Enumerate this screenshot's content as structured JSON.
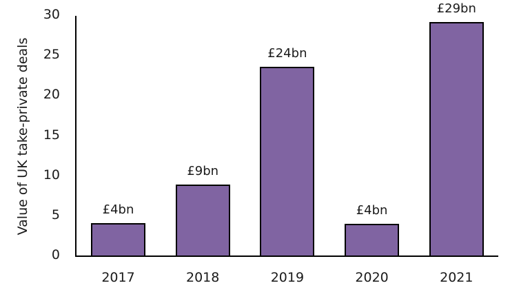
{
  "chart_data": {
    "type": "bar",
    "title": "",
    "xlabel": "",
    "ylabel": "Value of UK take-private deals",
    "categories": [
      "2017",
      "2018",
      "2019",
      "2020",
      "2021"
    ],
    "values": [
      4.1,
      8.9,
      23.6,
      4.0,
      29.2
    ],
    "data_labels": [
      "£4bn",
      "£9bn",
      "£24bn",
      "£4bn",
      "£29bn"
    ],
    "ylim": [
      0,
      30
    ],
    "yticks": [
      0,
      5,
      10,
      15,
      20,
      25,
      30
    ],
    "grid": false,
    "legend": null,
    "bar_color": "#8064A2",
    "bar_edge_color": "#000000"
  }
}
